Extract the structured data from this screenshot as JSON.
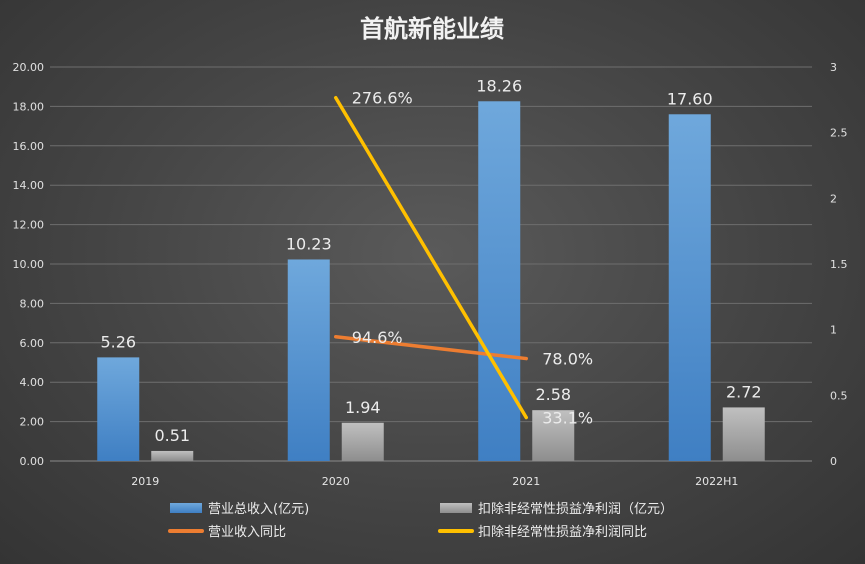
{
  "chart_data": {
    "type": "bar",
    "title": "首航新能业绩",
    "categories": [
      "2019",
      "2020",
      "2021",
      "2022H1"
    ],
    "left_axis": {
      "ylim": [
        0,
        20
      ],
      "ticks": [
        "0.00",
        "2.00",
        "4.00",
        "6.00",
        "8.00",
        "10.00",
        "12.00",
        "14.00",
        "16.00",
        "18.00",
        "20.00"
      ]
    },
    "right_axis": {
      "ylim": [
        0,
        3
      ],
      "ticks": [
        "0",
        "0.5",
        "1",
        "1.5",
        "2",
        "2.5",
        "3"
      ]
    },
    "series": [
      {
        "name": "营业总收入(亿元)",
        "type": "bar",
        "axis": "left",
        "color": "#5b9bd5",
        "values": [
          5.26,
          10.23,
          18.26,
          17.6
        ],
        "labels": [
          "5.26",
          "10.23",
          "18.26",
          "17.60"
        ]
      },
      {
        "name": "扣除非经常性损益净利润（亿元）",
        "type": "bar",
        "axis": "left",
        "color": "#a5a5a5",
        "values": [
          0.51,
          1.94,
          2.58,
          2.72
        ],
        "labels": [
          "0.51",
          "1.94",
          "2.58",
          "2.72"
        ]
      },
      {
        "name": "营业收入同比",
        "type": "line",
        "axis": "right",
        "color": "#ed7d31",
        "values": [
          null,
          0.946,
          0.78,
          null
        ],
        "labels": [
          null,
          "94.6%",
          "78.0%",
          null
        ]
      },
      {
        "name": "扣除非经常性损益净利润同比",
        "type": "line",
        "axis": "right",
        "color": "#ffc000",
        "values": [
          null,
          2.766,
          0.331,
          null
        ],
        "labels": [
          null,
          "276.6%",
          "33.1%",
          null
        ]
      }
    ],
    "grid": true,
    "legend_position": "bottom"
  }
}
